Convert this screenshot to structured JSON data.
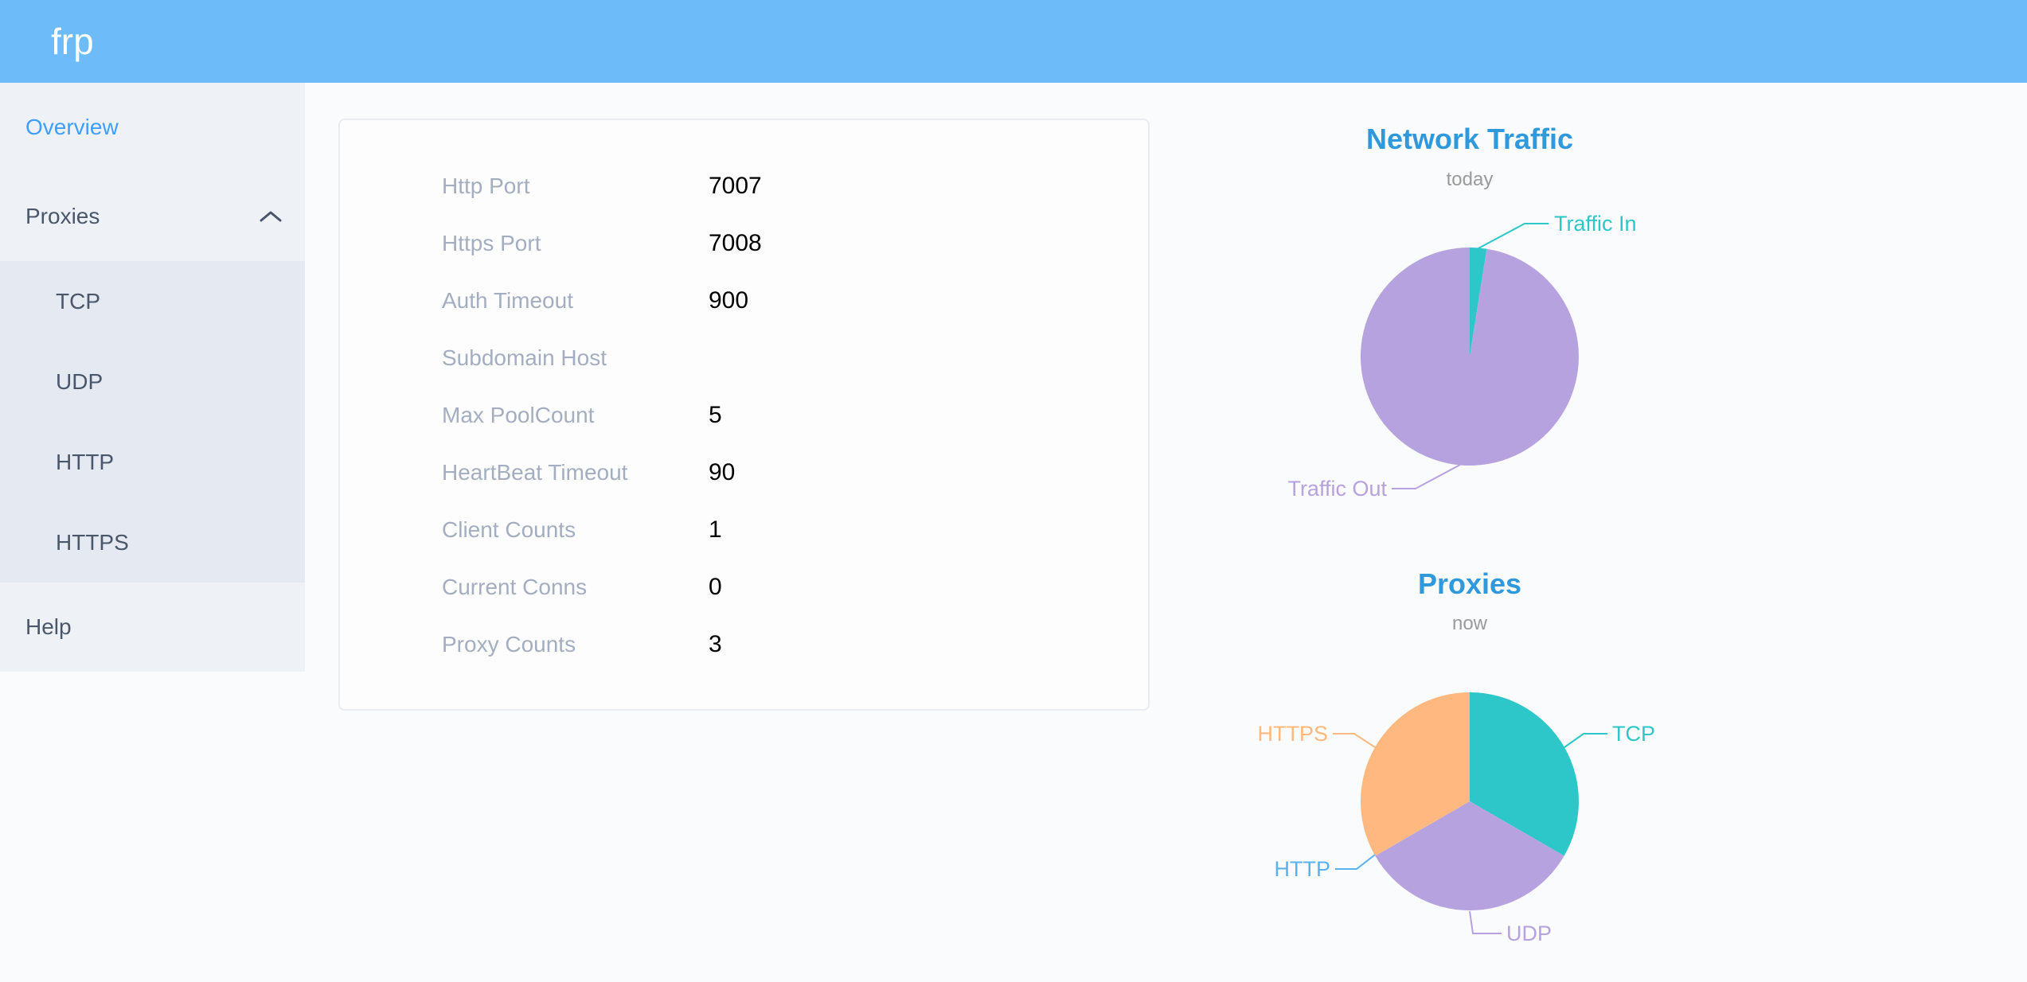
{
  "app": {
    "logo": "frp"
  },
  "sidebar": {
    "overview": "Overview",
    "proxies": "Proxies",
    "submenu": [
      "TCP",
      "UDP",
      "HTTP",
      "HTTPS"
    ],
    "help": "Help"
  },
  "server_info": {
    "rows": [
      {
        "label": "Http Port",
        "value": "7007"
      },
      {
        "label": "Https Port",
        "value": "7008"
      },
      {
        "label": "Auth Timeout",
        "value": "900"
      },
      {
        "label": "Subdomain Host",
        "value": ""
      },
      {
        "label": "Max PoolCount",
        "value": "5"
      },
      {
        "label": "HeartBeat Timeout",
        "value": "90"
      },
      {
        "label": "Client Counts",
        "value": "1"
      },
      {
        "label": "Current Conns",
        "value": "0"
      },
      {
        "label": "Proxy Counts",
        "value": "3"
      }
    ]
  },
  "colors": {
    "header_bg": "#6dbbf8",
    "sidebar_bg": "#eef2f7",
    "submenu_bg": "#e5e9f2",
    "menu_text": "#4a576b",
    "active_menu_text": "#409eff",
    "card_label": "#a3aec0",
    "card_value": "#000000",
    "chart_title": "#2f99dc",
    "chart_subtitle": "#9a9a9a"
  },
  "chart_data": [
    {
      "type": "pie",
      "title": "Network Traffic",
      "subtitle": "today",
      "units": "% (estimated from arc angles, no numeric labels shown)",
      "legend_position": "outside-leader-labels",
      "slices": [
        {
          "label": "Traffic In",
          "value": 2.5,
          "color": "#2ec7c9"
        },
        {
          "label": "Traffic Out",
          "value": 97.5,
          "color": "#b6a2de"
        }
      ]
    },
    {
      "type": "pie",
      "title": "Proxies",
      "subtitle": "now",
      "units": "proxy count",
      "legend_position": "outside-leader-labels",
      "slices": [
        {
          "label": "TCP",
          "value": 1,
          "color": "#2ec7c9"
        },
        {
          "label": "UDP",
          "value": 1,
          "color": "#b6a2de"
        },
        {
          "label": "HTTP",
          "value": 0,
          "color": "#5ab1ef"
        },
        {
          "label": "HTTPS",
          "value": 1,
          "color": "#ffb980"
        }
      ]
    }
  ]
}
